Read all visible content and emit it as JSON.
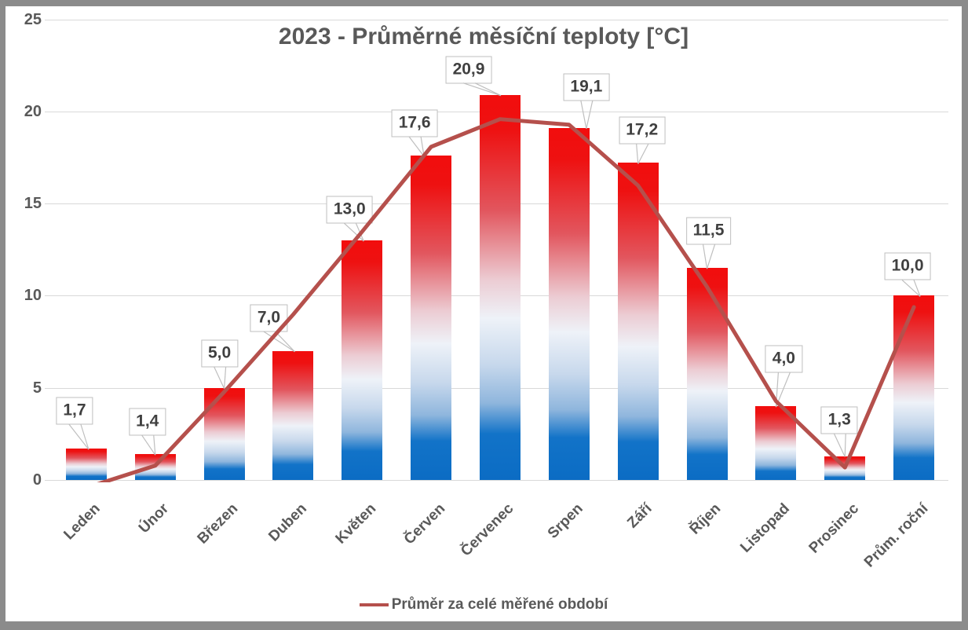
{
  "window": {
    "background": "#ffffff",
    "frame_color": "#8b8b8b"
  },
  "chart_data": {
    "type": "bar",
    "title": "2023 - Průměrné měsíční teploty [°C]",
    "categories": [
      "Leden",
      "Únor",
      "Březen",
      "Duben",
      "Květen",
      "Červen",
      "Červenec",
      "Srpen",
      "Září",
      "Říjen",
      "Listopad",
      "Prosinec",
      "Prům. roční"
    ],
    "series": [
      {
        "name": "2023",
        "type": "bar",
        "values": [
          1.7,
          1.4,
          5.0,
          7.0,
          13.0,
          17.6,
          20.9,
          19.1,
          17.2,
          11.5,
          4.0,
          1.3,
          10.0
        ],
        "data_labels": [
          "1,7",
          "1,4",
          "5,0",
          "7,0",
          "13,0",
          "17,6",
          "20,9",
          "19,1",
          "17,2",
          "11,5",
          "4,0",
          "1,3",
          "10,0"
        ]
      },
      {
        "name": "Průměr za celé měřené období",
        "type": "line",
        "values": [
          -0.4,
          0.8,
          4.8,
          9.0,
          13.5,
          18.1,
          19.6,
          19.3,
          16.0,
          10.5,
          4.3,
          0.7,
          9.4
        ]
      }
    ],
    "xlabel": "",
    "ylabel": "",
    "ylim": [
      0,
      25
    ],
    "yticks": [
      "0",
      "5",
      "10",
      "15",
      "20",
      "25"
    ],
    "grid": true,
    "legend_position": "bottom",
    "label_offsets": [
      [
        -15,
        -48,
        3
      ],
      [
        -10,
        -41,
        0
      ],
      [
        -6,
        -44,
        0
      ],
      [
        -31,
        -42,
        2
      ],
      [
        -16,
        -39,
        2
      ],
      [
        -21,
        -41,
        -9
      ],
      [
        -40,
        -32,
        1
      ],
      [
        22,
        -52,
        22
      ],
      [
        5,
        -41,
        0
      ],
      [
        2,
        -47,
        0
      ],
      [
        10,
        -60,
        0
      ],
      [
        -7,
        -46,
        0
      ],
      [
        -8,
        -37,
        8
      ]
    ]
  },
  "colors": {
    "line": "#b5504c",
    "bar_top": "#f20d0d",
    "bar_mid": "#eef2f8",
    "bar_bottom": "#0b6cc4",
    "gridline": "#d9d9d9",
    "callout_border": "#bfbfbf",
    "callout_text": "#404040",
    "axis_text": "#595959",
    "title_text": "#595959"
  },
  "legend": {
    "items": [
      {
        "label": "Průměr za celé měřené období",
        "swatch": "line",
        "color": "#b5504c"
      }
    ]
  }
}
